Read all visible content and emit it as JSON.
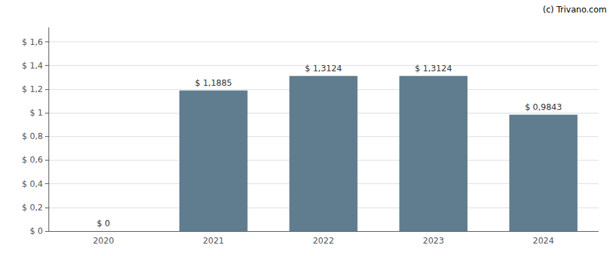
{
  "chart_data": {
    "type": "bar",
    "categories": [
      "2020",
      "2021",
      "2022",
      "2023",
      "2024"
    ],
    "values": [
      0,
      1.1885,
      1.3124,
      1.3124,
      0.9843
    ],
    "value_labels": [
      "$ 0",
      "$ 1,1885",
      "$ 1,3124",
      "$ 1,3124",
      "$ 0,9843"
    ],
    "data_labels": true,
    "color": "#607d8f",
    "ylim": [
      0,
      1.72
    ],
    "yticks": [
      {
        "value": 0,
        "label": "$ 0"
      },
      {
        "value": 0.2,
        "label": "$ 0,2"
      },
      {
        "value": 0.4,
        "label": "$ 0,4"
      },
      {
        "value": 0.6,
        "label": "$ 0,6"
      },
      {
        "value": 0.8,
        "label": "$ 0,8"
      },
      {
        "value": 1.0,
        "label": "$ 1"
      },
      {
        "value": 1.2,
        "label": "$ 1,2"
      },
      {
        "value": 1.4,
        "label": "$ 1,4"
      },
      {
        "value": 1.6,
        "label": "$ 1,6"
      }
    ],
    "grid": true,
    "annotations": [
      "(c) Trivano.com"
    ]
  }
}
